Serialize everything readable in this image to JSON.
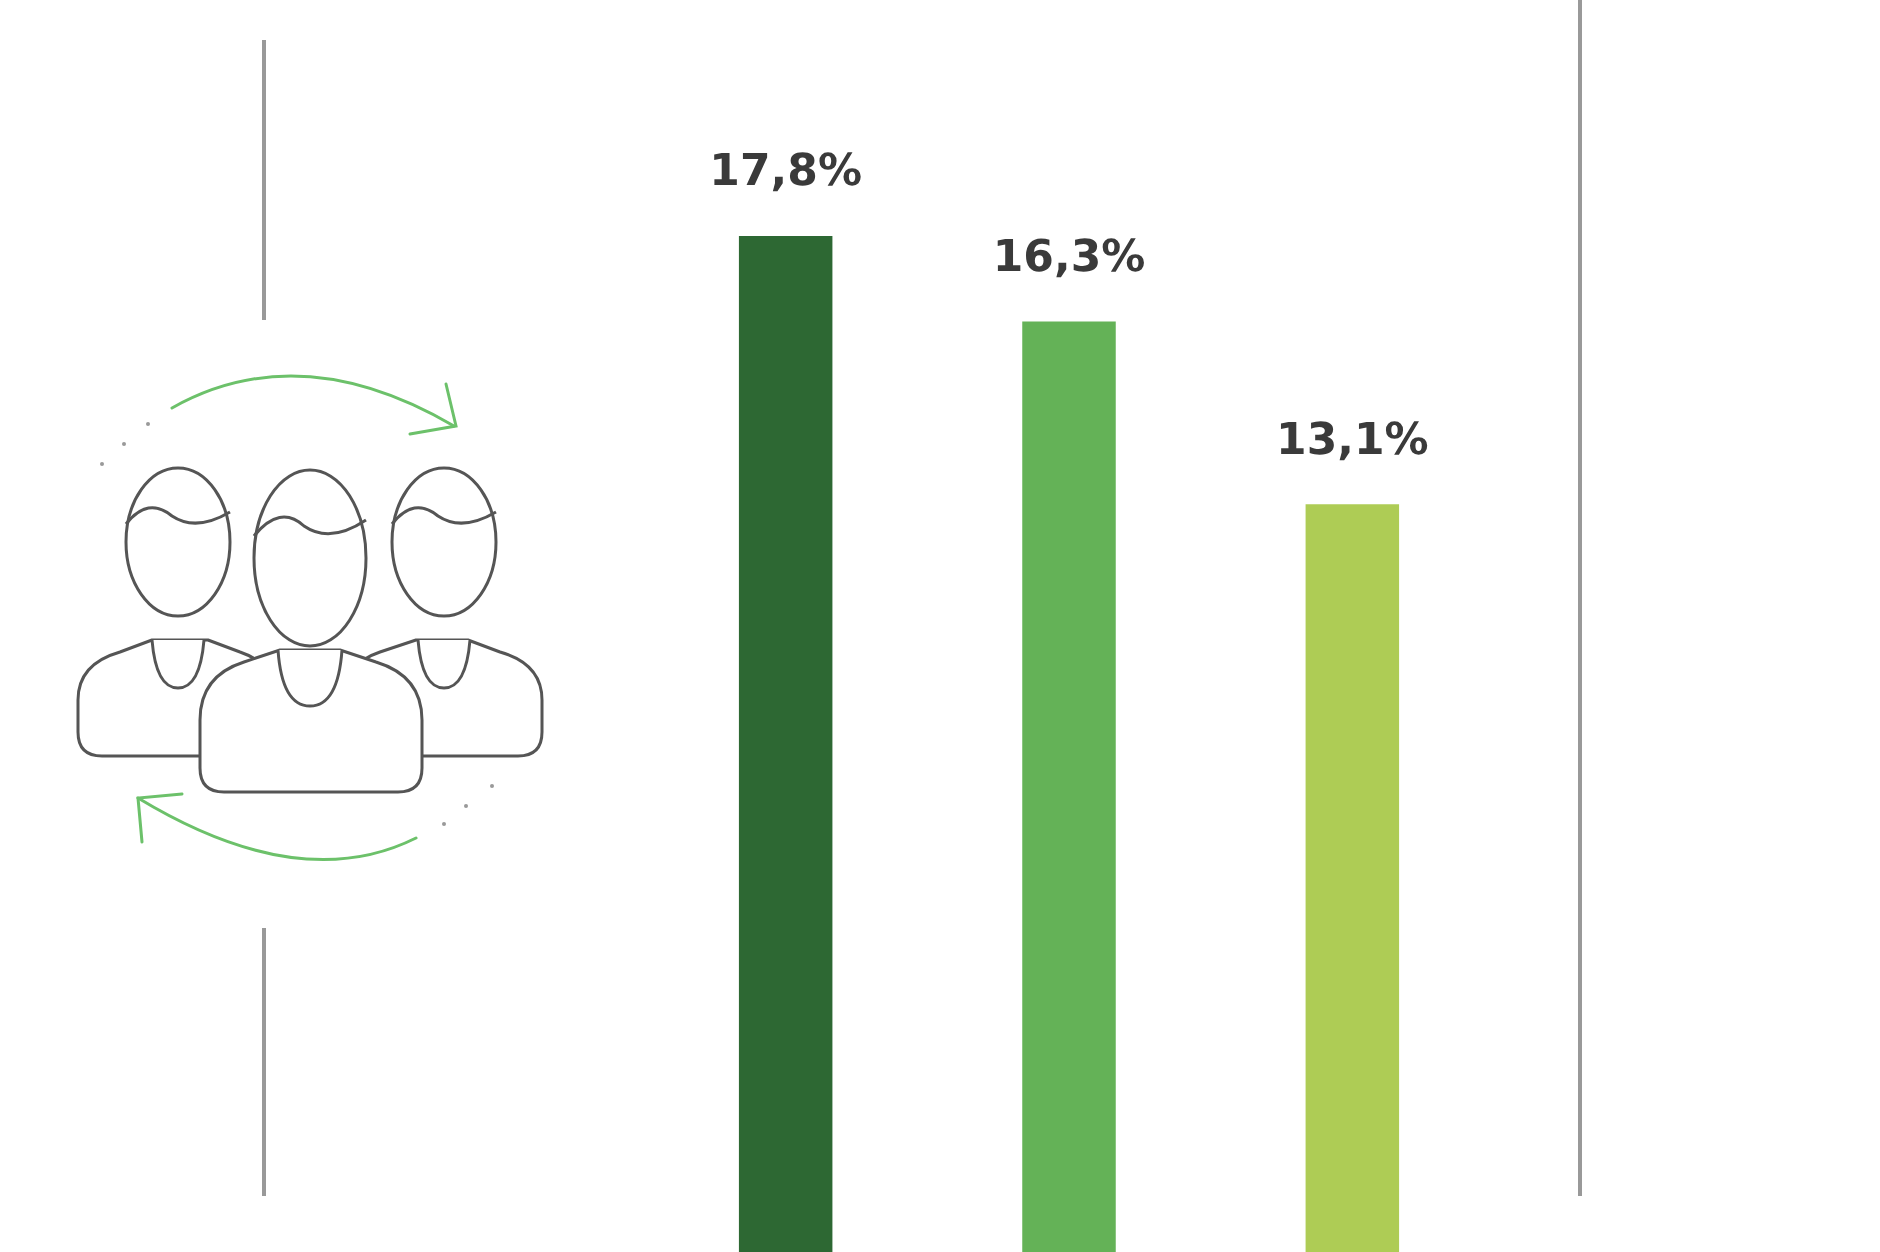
{
  "chart_data": {
    "type": "bar",
    "categories": [
      null,
      null,
      null
    ],
    "values": [
      17.8,
      16.3,
      13.1
    ],
    "colors": [
      "#2d6833",
      "#64b257",
      "#aecc55"
    ],
    "value_labels": [
      "17,8%",
      "16,3%",
      "13,1%"
    ]
  }
}
